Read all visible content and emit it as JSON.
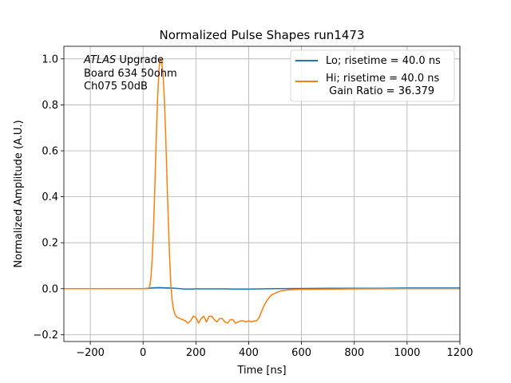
{
  "chart_data": {
    "type": "line",
    "title": "Normalized Pulse Shapes run1473",
    "xlabel": "Time [ns]",
    "ylabel": "Normalized Amplitude (A.U.)",
    "xlim": [
      -300,
      1200
    ],
    "ylim": [
      -0.23,
      1.055
    ],
    "x_ticks": [
      -200,
      0,
      200,
      400,
      600,
      800,
      1000,
      1200
    ],
    "x_tick_labels": [
      "−200",
      "0",
      "200",
      "400",
      "600",
      "800",
      "1000",
      "1200"
    ],
    "y_ticks": [
      -0.2,
      0.0,
      0.2,
      0.4,
      0.6,
      0.8,
      1.0
    ],
    "y_tick_labels": [
      "−0.2",
      "0.0",
      "0.2",
      "0.4",
      "0.6",
      "0.8",
      "1.0"
    ],
    "grid": true,
    "legend_position": "top-right",
    "annotation": {
      "atlas": "ATLAS",
      "upgrade": " Upgrade",
      "line2": "Board 634 50ohm",
      "line3": "Ch075 50dB"
    },
    "series": [
      {
        "name": "Lo; risetime = 40.0 ns",
        "color": "#1f77b4",
        "x": [
          -300,
          0,
          20,
          40,
          60,
          80,
          100,
          120,
          140,
          160,
          180,
          200,
          250,
          300,
          350,
          400,
          450,
          500,
          600,
          700,
          800,
          900,
          1000,
          1100,
          1200
        ],
        "y": [
          0.0,
          0.0,
          0.002,
          0.004,
          0.005,
          0.004,
          0.003,
          0.002,
          0.0,
          -0.002,
          -0.002,
          -0.001,
          -0.001,
          -0.001,
          -0.002,
          -0.002,
          -0.001,
          0.0,
          0.001,
          0.002,
          0.002,
          0.002,
          0.003,
          0.003,
          0.003
        ]
      },
      {
        "name": "Hi; risetime = 40.0 ns\n Gain Ratio = 36.379",
        "color": "#ff7f0e",
        "x": [
          -300,
          20,
          25,
          30,
          35,
          40,
          45,
          50,
          55,
          60,
          65,
          70,
          75,
          80,
          85,
          90,
          95,
          100,
          105,
          110,
          115,
          120,
          125,
          130,
          135,
          140,
          150,
          160,
          170,
          180,
          190,
          200,
          210,
          220,
          230,
          240,
          250,
          260,
          270,
          280,
          290,
          300,
          310,
          320,
          330,
          340,
          350,
          360,
          370,
          380,
          390,
          400,
          410,
          420,
          430,
          440,
          450,
          460,
          470,
          480,
          490,
          500,
          520,
          550,
          600,
          700,
          800,
          1000,
          1200
        ],
        "y": [
          0.0,
          0.0,
          0.01,
          0.05,
          0.14,
          0.28,
          0.46,
          0.66,
          0.83,
          0.95,
          1.0,
          0.99,
          0.94,
          0.84,
          0.69,
          0.5,
          0.32,
          0.15,
          0.02,
          -0.05,
          -0.09,
          -0.11,
          -0.12,
          -0.125,
          -0.128,
          -0.13,
          -0.135,
          -0.14,
          -0.15,
          -0.14,
          -0.12,
          -0.125,
          -0.15,
          -0.13,
          -0.12,
          -0.145,
          -0.12,
          -0.12,
          -0.135,
          -0.145,
          -0.13,
          -0.13,
          -0.145,
          -0.15,
          -0.135,
          -0.135,
          -0.15,
          -0.145,
          -0.14,
          -0.14,
          -0.145,
          -0.14,
          -0.145,
          -0.14,
          -0.14,
          -0.125,
          -0.095,
          -0.07,
          -0.05,
          -0.035,
          -0.025,
          -0.02,
          -0.01,
          -0.005,
          -0.003,
          -0.002,
          -0.001,
          0.0,
          0.0
        ]
      }
    ]
  }
}
